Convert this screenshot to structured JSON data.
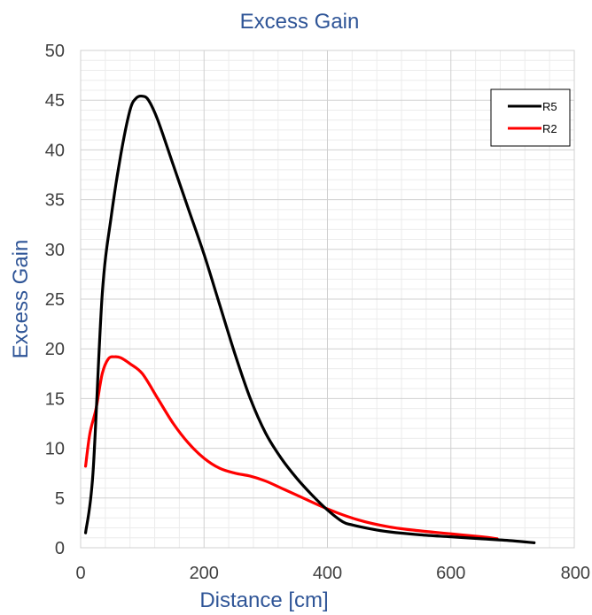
{
  "chart_data": {
    "type": "line",
    "title": "Excess Gain",
    "xlabel": "Distance [cm]",
    "ylabel": "Excess Gain",
    "xlim": [
      0,
      800
    ],
    "ylim": [
      0,
      50
    ],
    "xticks": [
      0,
      200,
      400,
      600,
      800
    ],
    "yticks": [
      0,
      5,
      10,
      15,
      20,
      25,
      30,
      35,
      40,
      45,
      50
    ],
    "x_tick_labels": [
      "0",
      "200",
      "400",
      "600",
      "800"
    ],
    "y_tick_labels": [
      "0",
      "5",
      "10",
      "15",
      "20",
      "25",
      "30",
      "35",
      "40",
      "45",
      "50"
    ],
    "grid": true,
    "minor_grid": true,
    "legend_position": "top-right",
    "series": [
      {
        "name": "R5",
        "color": "#000000",
        "x": [
          8,
          20,
          35,
          50,
          65,
          80,
          90,
          100,
          110,
          125,
          150,
          175,
          200,
          225,
          250,
          275,
          300,
          325,
          350,
          375,
          400,
          425,
          440,
          470,
          500,
          550,
          600,
          650,
          700,
          735
        ],
        "y": [
          1.5,
          7.5,
          25.5,
          33.5,
          39.5,
          44,
          45.2,
          45.4,
          45,
          43,
          38.5,
          34,
          29.5,
          24.5,
          19.5,
          15,
          11.5,
          9,
          7,
          5.3,
          3.8,
          2.6,
          2.3,
          1.9,
          1.6,
          1.3,
          1.1,
          0.9,
          0.7,
          0.5
        ]
      },
      {
        "name": "R2",
        "color": "#ff0000",
        "x": [
          8,
          15,
          25,
          35,
          45,
          55,
          65,
          80,
          100,
          125,
          150,
          175,
          200,
          225,
          250,
          275,
          300,
          325,
          350,
          400,
          450,
          500,
          550,
          600,
          650,
          675
        ],
        "y": [
          8.2,
          11.5,
          14,
          17.5,
          19,
          19.2,
          19.1,
          18.5,
          17.5,
          15,
          12.5,
          10.5,
          9,
          8,
          7.5,
          7.2,
          6.7,
          6,
          5.3,
          3.9,
          2.8,
          2.1,
          1.7,
          1.4,
          1.1,
          0.9
        ]
      }
    ]
  }
}
